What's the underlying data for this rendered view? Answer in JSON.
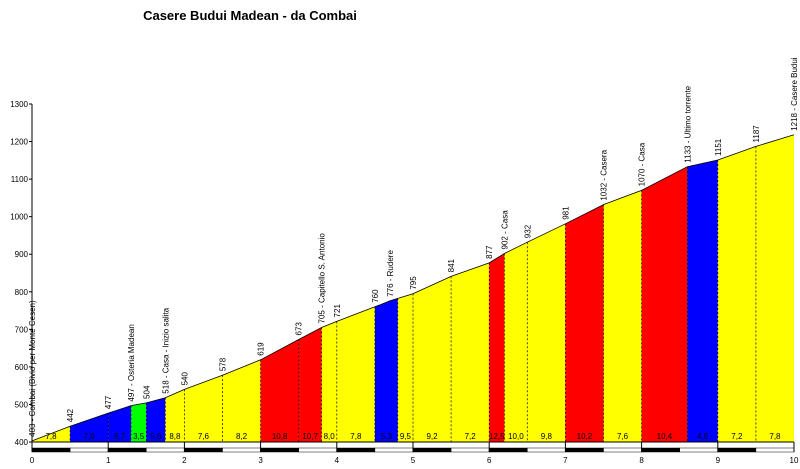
{
  "chart_data": {
    "type": "area",
    "title": "Casere Budui Madean - da Combai",
    "xlabel": "",
    "ylabel": "",
    "xlim": [
      0,
      10
    ],
    "ylim": [
      400,
      1300
    ],
    "x_ticks": [
      "0",
      "1",
      "2",
      "3",
      "4",
      "5",
      "6",
      "7",
      "8",
      "9",
      "10"
    ],
    "y_ticks": [
      "400",
      "500",
      "600",
      "700",
      "800",
      "900",
      "1000",
      "1100",
      "1200",
      "1300"
    ],
    "profile": [
      {
        "x": 0.0,
        "y": 403,
        "label": "403 - Combai (Bivio per Monte Cesen)"
      },
      {
        "x": 0.5,
        "y": 442,
        "label": "442"
      },
      {
        "x": 1.0,
        "y": 477,
        "label": "477"
      },
      {
        "x": 1.3,
        "y": 497,
        "label": "497 - Osteria Madean"
      },
      {
        "x": 1.5,
        "y": 504,
        "label": "504"
      },
      {
        "x": 1.75,
        "y": 518,
        "label": "518 - Casa - Inizio salita"
      },
      {
        "x": 2.0,
        "y": 540,
        "label": "540"
      },
      {
        "x": 2.5,
        "y": 578,
        "label": "578"
      },
      {
        "x": 3.0,
        "y": 619,
        "label": "619"
      },
      {
        "x": 3.5,
        "y": 673,
        "label": "673"
      },
      {
        "x": 3.8,
        "y": 705,
        "label": "705 - Capitello S. Antonio"
      },
      {
        "x": 4.0,
        "y": 721,
        "label": "721"
      },
      {
        "x": 4.5,
        "y": 760,
        "label": "760"
      },
      {
        "x": 4.7,
        "y": 776,
        "label": "776 - Rudere"
      },
      {
        "x": 5.0,
        "y": 795,
        "label": "795"
      },
      {
        "x": 5.5,
        "y": 841,
        "label": "841"
      },
      {
        "x": 6.0,
        "y": 877,
        "label": "877"
      },
      {
        "x": 6.2,
        "y": 902,
        "label": "902 - Casa"
      },
      {
        "x": 6.5,
        "y": 932,
        "label": "932"
      },
      {
        "x": 7.0,
        "y": 981,
        "label": "981"
      },
      {
        "x": 7.5,
        "y": 1032,
        "label": "1032 - Casera"
      },
      {
        "x": 8.0,
        "y": 1070,
        "label": "1070 - Casa"
      },
      {
        "x": 8.6,
        "y": 1133,
        "label": "1133 - Ultimo torrente"
      },
      {
        "x": 9.0,
        "y": 1151,
        "label": "1151"
      },
      {
        "x": 9.5,
        "y": 1187,
        "label": "1187"
      },
      {
        "x": 10.0,
        "y": 1218,
        "label": "1218 - Casere Budui"
      }
    ],
    "segments": [
      {
        "from": 0.0,
        "to": 0.5,
        "gradient": "7,8",
        "color": "#ffff00"
      },
      {
        "from": 0.5,
        "to": 1.0,
        "gradient": "7,0",
        "color": "#0000ff"
      },
      {
        "from": 1.0,
        "to": 1.3,
        "gradient": "6,7",
        "color": "#0000ff"
      },
      {
        "from": 1.3,
        "to": 1.5,
        "gradient": "3,5",
        "color": "#00ff00"
      },
      {
        "from": 1.5,
        "to": 1.75,
        "gradient": "5,6",
        "color": "#0000ff"
      },
      {
        "from": 1.75,
        "to": 2.0,
        "gradient": "8,8",
        "color": "#ffff00"
      },
      {
        "from": 2.0,
        "to": 2.5,
        "gradient": "7,6",
        "color": "#ffff00"
      },
      {
        "from": 2.5,
        "to": 3.0,
        "gradient": "8,2",
        "color": "#ffff00"
      },
      {
        "from": 3.0,
        "to": 3.5,
        "gradient": "10,8",
        "color": "#ff0000"
      },
      {
        "from": 3.5,
        "to": 3.8,
        "gradient": "10,7",
        "color": "#ff0000"
      },
      {
        "from": 3.8,
        "to": 4.0,
        "gradient": "8,0",
        "color": "#ffff00"
      },
      {
        "from": 4.0,
        "to": 4.5,
        "gradient": "7,8",
        "color": "#ffff00"
      },
      {
        "from": 4.5,
        "to": 4.8,
        "gradient": "5,3",
        "color": "#0000ff"
      },
      {
        "from": 4.8,
        "to": 5.0,
        "gradient": "9,5",
        "color": "#ffff00"
      },
      {
        "from": 5.0,
        "to": 5.5,
        "gradient": "9,2",
        "color": "#ffff00"
      },
      {
        "from": 5.5,
        "to": 6.0,
        "gradient": "7,2",
        "color": "#ffff00"
      },
      {
        "from": 6.0,
        "to": 6.2,
        "gradient": "12,5",
        "color": "#ff0000"
      },
      {
        "from": 6.2,
        "to": 6.5,
        "gradient": "10,0",
        "color": "#ffff00"
      },
      {
        "from": 6.5,
        "to": 7.0,
        "gradient": "9,8",
        "color": "#ffff00"
      },
      {
        "from": 7.0,
        "to": 7.5,
        "gradient": "10,2",
        "color": "#ff0000"
      },
      {
        "from": 7.5,
        "to": 8.0,
        "gradient": "7,6",
        "color": "#ffff00"
      },
      {
        "from": 8.0,
        "to": 8.6,
        "gradient": "10,4",
        "color": "#ff0000"
      },
      {
        "from": 8.6,
        "to": 9.0,
        "gradient": "4,6",
        "color": "#0000ff"
      },
      {
        "from": 9.0,
        "to": 9.5,
        "gradient": "7,2",
        "color": "#ffff00"
      },
      {
        "from": 9.5,
        "to": 10.0,
        "gradient": "7,8",
        "color": "#ffff00"
      }
    ],
    "grid": false
  }
}
